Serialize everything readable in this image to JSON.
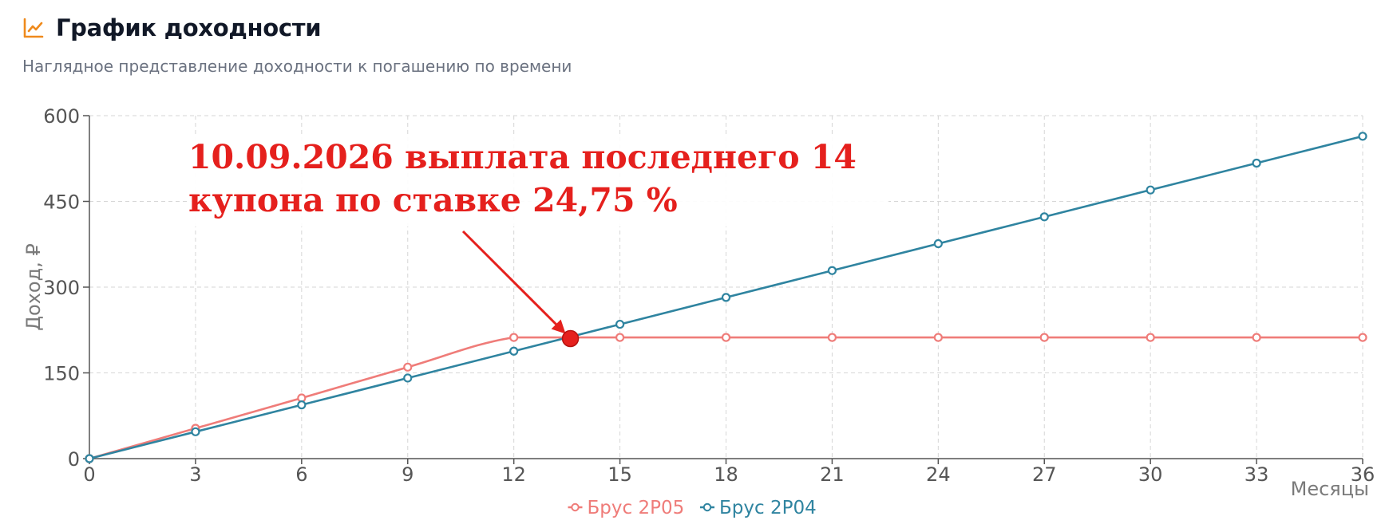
{
  "header": {
    "icon": "line-chart-icon",
    "title": "График доходности",
    "subtitle": "Наглядное представление доходности к погашению по времени"
  },
  "annotation": {
    "line1": "10.09.2026  выплата последнего 14",
    "line2": "купона по ставке 24,75 %",
    "color": "#e5201d",
    "marker": {
      "x": 13.6,
      "y": 210
    }
  },
  "chart_data": {
    "type": "line",
    "xlabel": "Месяцы",
    "ylabel": "Доход, ₽",
    "xlim": [
      0,
      36
    ],
    "ylim": [
      0,
      600
    ],
    "xticks": [
      "0",
      "3",
      "6",
      "9",
      "12",
      "15",
      "18",
      "21",
      "24",
      "27",
      "30",
      "33",
      "36"
    ],
    "yticks": [
      "0",
      "150",
      "300",
      "450",
      "600"
    ],
    "grid": true,
    "legend_position": "bottom-center",
    "series": [
      {
        "name": "Брус 2Р05",
        "color": "#ef7c79",
        "x": [
          0,
          3,
          6,
          9,
          12,
          15,
          18,
          21,
          24,
          27,
          30,
          33,
          36
        ],
        "values": [
          0,
          53,
          106,
          160,
          212,
          212,
          212,
          212,
          212,
          212,
          212,
          212,
          212
        ]
      },
      {
        "name": "Брус 2Р04",
        "color": "#2f84a0",
        "x": [
          0,
          3,
          6,
          9,
          12,
          15,
          18,
          21,
          24,
          27,
          30,
          33,
          36
        ],
        "values": [
          0,
          47,
          94,
          141,
          188,
          235,
          282,
          329,
          376,
          423,
          470,
          517,
          564
        ]
      }
    ]
  }
}
